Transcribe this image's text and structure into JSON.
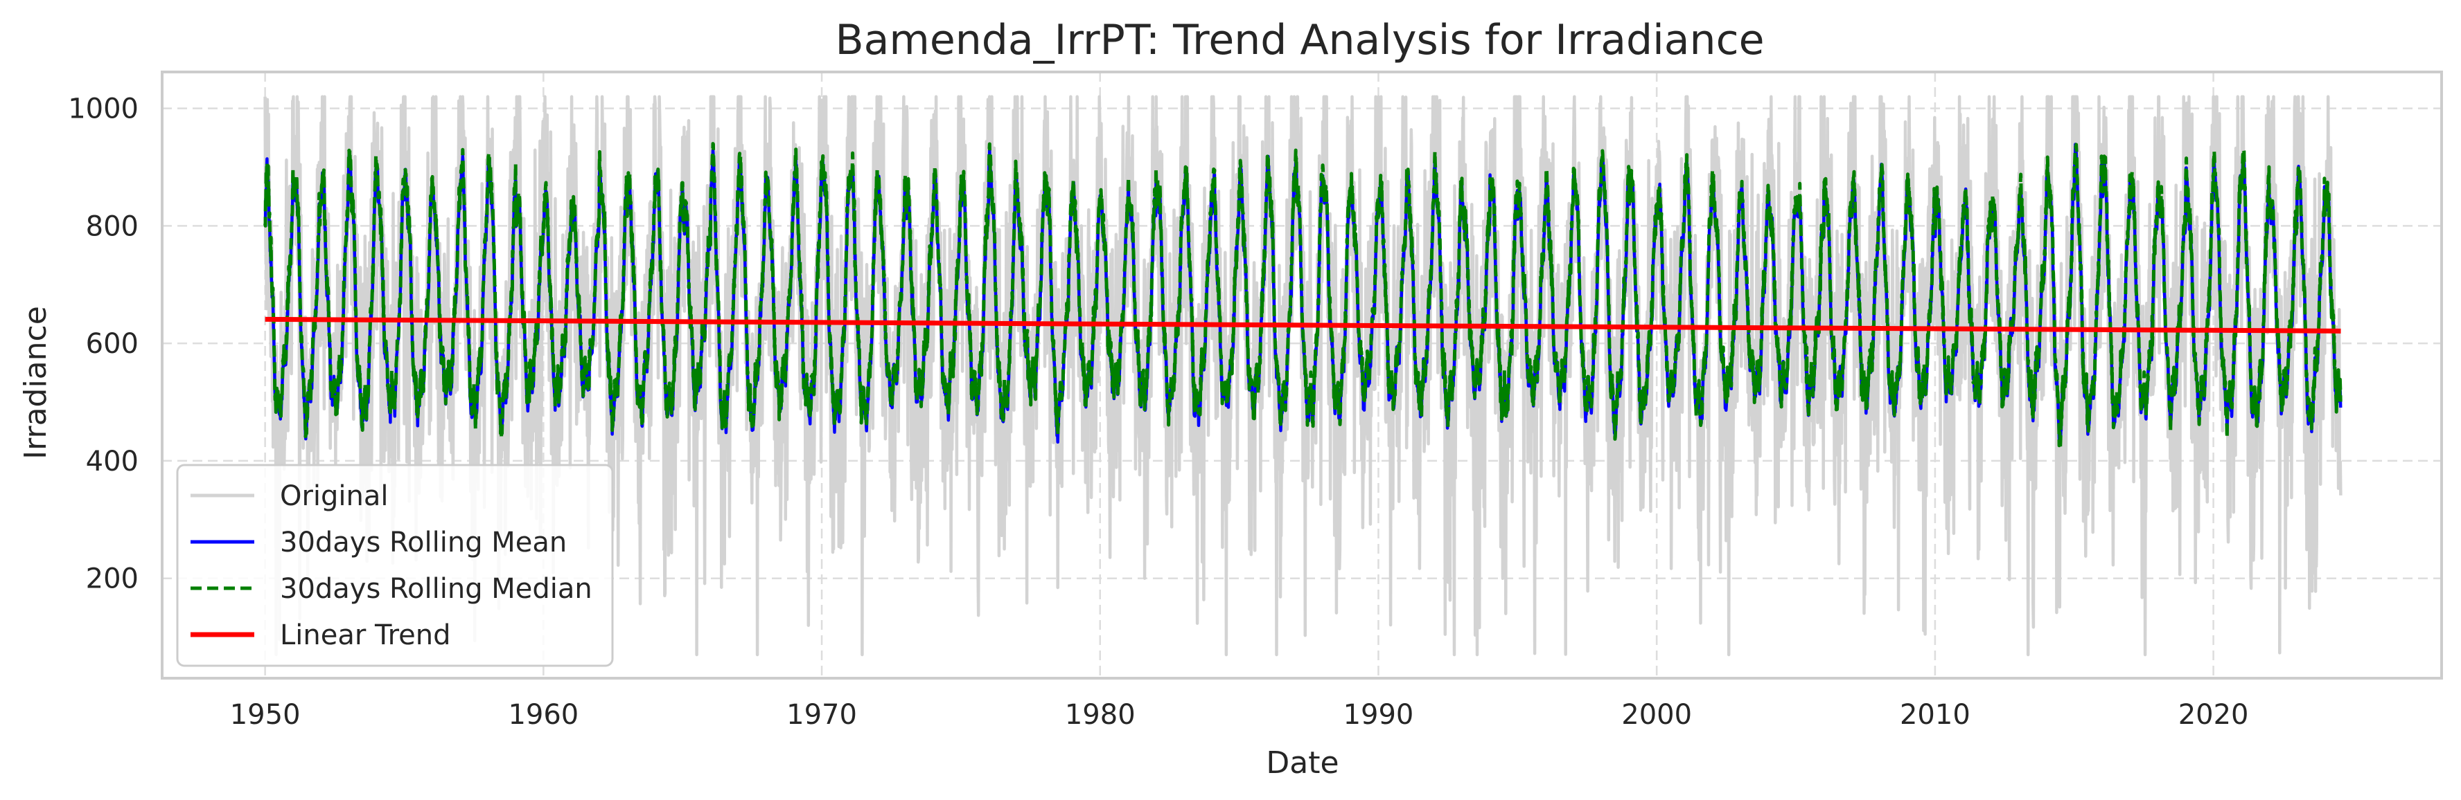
{
  "chart_data": {
    "type": "line",
    "title": "Bamenda_IrrPT: Trend Analysis for Irradiance",
    "xlabel": "Date",
    "ylabel": "Irradiance",
    "xlim": [
      1946.3,
      2028.2
    ],
    "ylim": [
      30,
      1062
    ],
    "x_ticks": [
      "1950",
      "1960",
      "1970",
      "1980",
      "1990",
      "2000",
      "2010",
      "2020"
    ],
    "y_ticks": [
      "200",
      "400",
      "600",
      "800",
      "1000"
    ],
    "grid": true,
    "legend_position": "lower-left",
    "date_range": [
      "1950-01-01",
      "2024-07-31"
    ],
    "series": [
      {
        "name": "Original",
        "color": "#d3d3d3",
        "style": "solid",
        "summary": {
          "typical_peak": 960,
          "typical_trough": 180,
          "max": 1020,
          "min": 70
        }
      },
      {
        "name": "30days Rolling Mean",
        "color": "#0000ff",
        "style": "solid",
        "summary": {
          "typical_peak": 890,
          "typical_trough": 420,
          "max": 955,
          "min": 355
        }
      },
      {
        "name": "30days Rolling Median",
        "color": "#008000",
        "style": "dashed",
        "summary": {
          "typical_peak": 900,
          "typical_trough": 430,
          "max": 960,
          "min": 360
        }
      },
      {
        "name": "Linear Trend",
        "color": "#ff0000",
        "style": "solid",
        "x": [
          "1950-01-01",
          "2024-07-31"
        ],
        "y": [
          641,
          621
        ]
      }
    ]
  }
}
